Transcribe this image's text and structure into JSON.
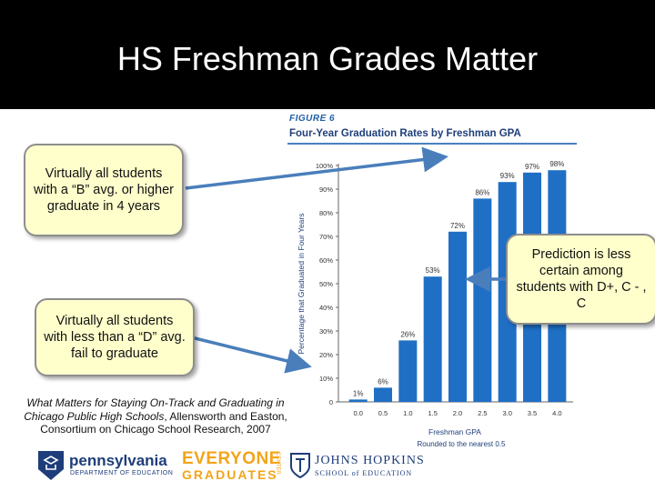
{
  "slide": {
    "title": "HS Freshman Grades Matter",
    "figure_label": "FIGURE 6",
    "figure_title": "Four-Year Graduation Rates by Freshman GPA"
  },
  "callouts": {
    "b_avg": "Virtually all students with a “B” avg. or higher graduate in 4 years",
    "d_avg": "Virtually all students with less than a “D” avg. fail to graduate",
    "c_range": "Prediction is less certain among students with D+, C - , C"
  },
  "citation": {
    "title": "What Matters for Staying On-Track and Graduating in Chicago Public High Schools",
    "rest": ", Allensworth and Easton, Consortium on Chicago School Research, 2007"
  },
  "logos": {
    "pa_name": "pennsylvania",
    "pa_dept": "DEPARTMENT OF EDUCATION",
    "eg_line1": "EVERYONE",
    "eg_line2": "GRADUATES",
    "eg_side": "CENTER",
    "jh_line1": "JOHNS HOPKINS",
    "jh_line2": "SCHOOL of EDUCATION"
  },
  "colors": {
    "bar": "#1f6fc5",
    "arrow": "#4a7ebb",
    "title_bg": "#000000",
    "callout_bg": "#ffffcc"
  },
  "chart_data": {
    "type": "bar",
    "title": "Four-Year Graduation Rates by Freshman GPA",
    "xlabel": "Freshman GPA",
    "xlabel_note": "Rounded to the nearest 0.5",
    "ylabel": "Percentage that Graduated in Four Years",
    "categories": [
      "0.0",
      "0.5",
      "1.0",
      "1.5",
      "2.0",
      "2.5",
      "3.0",
      "3.5",
      "4.0"
    ],
    "values": [
      1,
      6,
      26,
      53,
      72,
      86,
      93,
      97,
      98
    ],
    "data_labels": [
      "1%",
      "6%",
      "26%",
      "53%",
      "72%",
      "86%",
      "93%",
      "97%",
      "98%"
    ],
    "yticks": [
      "0",
      "10%",
      "20%",
      "30%",
      "40%",
      "50%",
      "60%",
      "70%",
      "80%",
      "90%",
      "100%"
    ],
    "ylim": [
      0,
      100
    ],
    "grid": false,
    "legend": "none"
  }
}
